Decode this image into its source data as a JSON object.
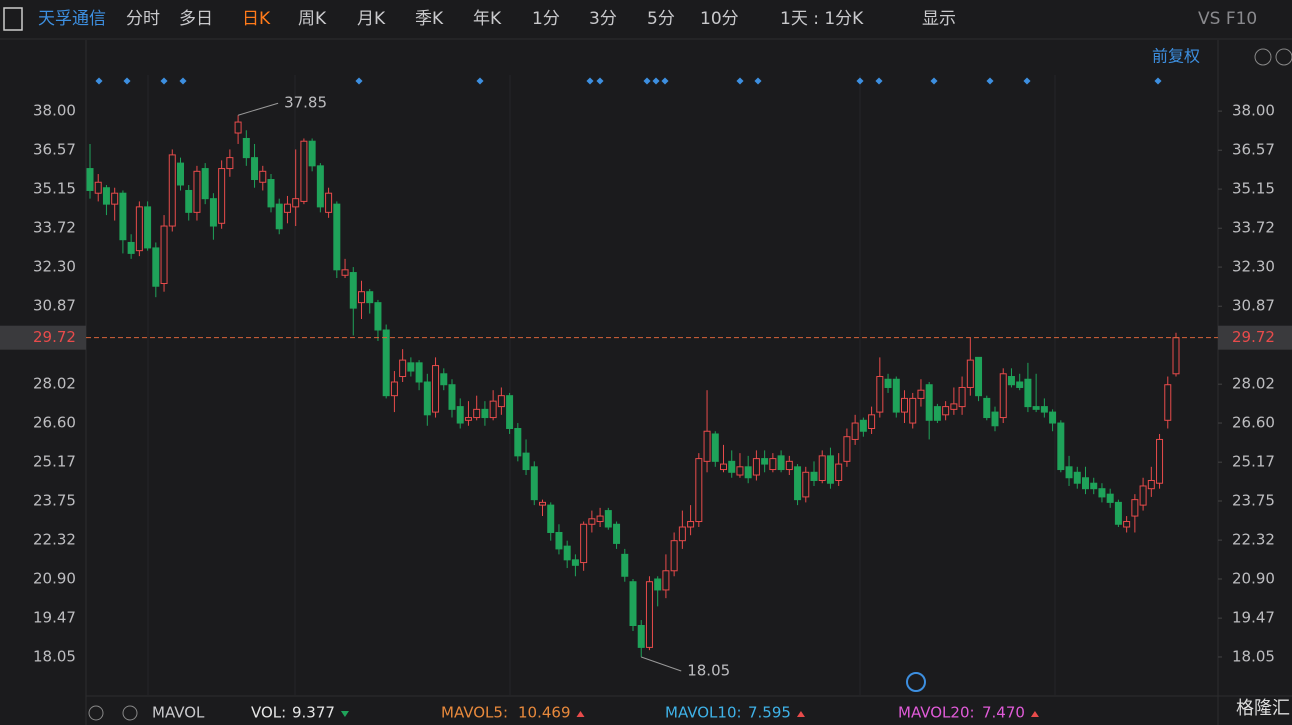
{
  "toolbar": {
    "symbol": "天孚通信",
    "periods": [
      "分时",
      "多日",
      "日K",
      "周K",
      "月K",
      "季K",
      "年K",
      "1分",
      "3分",
      "5分",
      "10分"
    ],
    "interval": "1天 : 1分K",
    "display": "显示",
    "f10": "VS F10"
  },
  "adjust": "前复权",
  "chart_data": {
    "type": "candlestick",
    "up_color": "#e84b4b",
    "down_color": "#1fa35a",
    "candles": [
      [
        35.9,
        36.8,
        34.8,
        35.1
      ],
      [
        35.0,
        35.7,
        34.7,
        35.4
      ],
      [
        35.2,
        35.3,
        34.2,
        34.6
      ],
      [
        34.6,
        35.2,
        34.0,
        35.0
      ],
      [
        35.0,
        35.1,
        32.8,
        33.3
      ],
      [
        33.2,
        33.5,
        32.6,
        32.8
      ],
      [
        32.9,
        34.7,
        32.7,
        34.5
      ],
      [
        34.5,
        34.7,
        32.9,
        33.0
      ],
      [
        33.0,
        33.2,
        31.2,
        31.6
      ],
      [
        31.7,
        34.2,
        31.4,
        33.8
      ],
      [
        33.8,
        36.6,
        33.6,
        36.4
      ],
      [
        36.1,
        36.3,
        35.1,
        35.3
      ],
      [
        35.1,
        35.3,
        34.0,
        34.3
      ],
      [
        34.3,
        36.0,
        34.0,
        35.8
      ],
      [
        35.9,
        36.1,
        34.6,
        34.8
      ],
      [
        34.8,
        35.0,
        33.3,
        33.8
      ],
      [
        33.9,
        36.2,
        33.7,
        35.9
      ],
      [
        35.9,
        36.6,
        35.6,
        36.3
      ],
      [
        37.2,
        37.85,
        36.8,
        37.6
      ],
      [
        37.0,
        37.3,
        36.0,
        36.3
      ],
      [
        36.3,
        36.8,
        35.2,
        35.5
      ],
      [
        35.4,
        36.0,
        35.1,
        35.8
      ],
      [
        35.5,
        35.7,
        34.3,
        34.5
      ],
      [
        34.6,
        34.8,
        33.5,
        33.7
      ],
      [
        34.3,
        34.9,
        33.9,
        34.6
      ],
      [
        34.5,
        36.6,
        33.8,
        34.8
      ],
      [
        34.7,
        37.0,
        34.6,
        36.9
      ],
      [
        36.9,
        37.0,
        35.8,
        36.0
      ],
      [
        36.0,
        36.1,
        34.3,
        34.5
      ],
      [
        34.3,
        35.2,
        34.1,
        35.0
      ],
      [
        34.6,
        34.7,
        31.9,
        32.2
      ],
      [
        32.0,
        32.6,
        31.9,
        32.2
      ],
      [
        32.1,
        32.3,
        29.8,
        30.8
      ],
      [
        31.0,
        31.8,
        30.4,
        31.4
      ],
      [
        31.4,
        31.5,
        30.6,
        31.0
      ],
      [
        31.0,
        31.1,
        29.6,
        30.0
      ],
      [
        30.0,
        30.2,
        27.5,
        27.6
      ],
      [
        27.6,
        28.5,
        27.0,
        28.1
      ],
      [
        28.3,
        29.3,
        28.1,
        28.9
      ],
      [
        28.8,
        29.0,
        28.3,
        28.5
      ],
      [
        28.8,
        28.9,
        27.8,
        28.1
      ],
      [
        28.1,
        28.4,
        26.5,
        26.9
      ],
      [
        27.0,
        29.0,
        26.8,
        28.7
      ],
      [
        28.4,
        28.6,
        27.8,
        28.0
      ],
      [
        28.0,
        28.2,
        26.8,
        27.1
      ],
      [
        27.2,
        27.5,
        26.4,
        26.6
      ],
      [
        26.7,
        27.4,
        26.5,
        26.8
      ],
      [
        26.8,
        27.6,
        26.7,
        27.1
      ],
      [
        27.1,
        27.4,
        26.5,
        26.8
      ],
      [
        26.8,
        27.8,
        26.7,
        27.4
      ],
      [
        27.2,
        27.9,
        26.9,
        27.6
      ],
      [
        27.6,
        27.7,
        26.2,
        26.4
      ],
      [
        26.4,
        26.6,
        25.2,
        25.4
      ],
      [
        25.5,
        26.0,
        24.7,
        24.9
      ],
      [
        25.0,
        25.2,
        23.6,
        23.8
      ],
      [
        23.6,
        23.8,
        23.2,
        23.7
      ],
      [
        23.6,
        23.7,
        22.3,
        22.6
      ],
      [
        22.6,
        22.9,
        21.8,
        22.0
      ],
      [
        22.1,
        22.3,
        21.3,
        21.6
      ],
      [
        21.6,
        21.8,
        21.0,
        21.4
      ],
      [
        21.5,
        23.0,
        21.2,
        22.9
      ],
      [
        22.9,
        23.4,
        22.6,
        23.1
      ],
      [
        23.0,
        23.5,
        22.8,
        23.2
      ],
      [
        23.4,
        23.5,
        22.7,
        22.8
      ],
      [
        22.9,
        23.0,
        22.0,
        22.2
      ],
      [
        21.8,
        22.0,
        20.8,
        21.0
      ],
      [
        20.8,
        20.9,
        19.0,
        19.2
      ],
      [
        19.2,
        19.4,
        18.05,
        18.4
      ],
      [
        18.4,
        21.0,
        18.3,
        20.8
      ],
      [
        20.9,
        21.0,
        19.9,
        20.5
      ],
      [
        20.5,
        21.8,
        20.2,
        21.2
      ],
      [
        21.2,
        22.6,
        21.0,
        22.3
      ],
      [
        22.3,
        23.4,
        22.0,
        22.8
      ],
      [
        22.8,
        23.6,
        22.5,
        23.0
      ],
      [
        23.0,
        25.5,
        22.8,
        25.3
      ],
      [
        25.2,
        27.8,
        24.8,
        26.3
      ],
      [
        26.2,
        26.3,
        25.0,
        25.2
      ],
      [
        24.9,
        25.8,
        24.8,
        25.1
      ],
      [
        25.2,
        25.6,
        24.6,
        24.8
      ],
      [
        24.7,
        25.5,
        24.6,
        25.0
      ],
      [
        25.0,
        25.4,
        24.4,
        24.6
      ],
      [
        24.7,
        25.6,
        24.5,
        25.3
      ],
      [
        25.3,
        25.6,
        24.8,
        25.1
      ],
      [
        24.9,
        25.5,
        24.8,
        25.3
      ],
      [
        25.4,
        25.6,
        24.8,
        24.9
      ],
      [
        24.9,
        25.4,
        24.7,
        25.2
      ],
      [
        25.0,
        25.1,
        23.6,
        23.8
      ],
      [
        23.9,
        25.0,
        23.7,
        24.8
      ],
      [
        24.8,
        25.2,
        24.3,
        24.5
      ],
      [
        24.5,
        25.6,
        24.4,
        25.4
      ],
      [
        25.4,
        25.7,
        24.2,
        24.4
      ],
      [
        24.5,
        25.5,
        24.3,
        25.1
      ],
      [
        25.2,
        26.4,
        25.0,
        26.1
      ],
      [
        26.0,
        26.9,
        25.8,
        26.6
      ],
      [
        26.7,
        26.8,
        26.1,
        26.3
      ],
      [
        26.4,
        27.2,
        26.2,
        26.9
      ],
      [
        27.0,
        29.0,
        26.8,
        28.3
      ],
      [
        28.2,
        28.4,
        27.7,
        27.9
      ],
      [
        28.2,
        28.3,
        26.8,
        27.0
      ],
      [
        27.0,
        27.8,
        26.6,
        27.5
      ],
      [
        26.6,
        27.7,
        26.4,
        27.5
      ],
      [
        27.5,
        28.2,
        27.2,
        27.8
      ],
      [
        28.0,
        28.1,
        26.0,
        26.7
      ],
      [
        27.2,
        27.3,
        26.6,
        26.7
      ],
      [
        26.9,
        27.4,
        26.7,
        27.2
      ],
      [
        27.1,
        27.9,
        26.9,
        27.3
      ],
      [
        27.2,
        28.3,
        26.9,
        27.9
      ],
      [
        27.9,
        29.72,
        27.6,
        28.9
      ],
      [
        29.0,
        29.0,
        27.4,
        27.6
      ],
      [
        27.5,
        27.6,
        26.7,
        26.8
      ],
      [
        27.0,
        27.2,
        26.3,
        26.5
      ],
      [
        26.8,
        28.6,
        26.6,
        28.4
      ],
      [
        28.3,
        28.6,
        27.9,
        28.0
      ],
      [
        28.1,
        28.4,
        27.8,
        27.9
      ],
      [
        28.2,
        28.8,
        27.0,
        27.2
      ],
      [
        27.2,
        28.4,
        27.0,
        27.1
      ],
      [
        27.2,
        27.5,
        26.8,
        27.0
      ],
      [
        27.0,
        27.1,
        26.3,
        26.6
      ],
      [
        26.6,
        26.7,
        24.8,
        24.9
      ],
      [
        25.0,
        25.4,
        24.3,
        24.6
      ],
      [
        24.8,
        25.0,
        24.2,
        24.4
      ],
      [
        24.6,
        25.0,
        24.0,
        24.2
      ],
      [
        24.4,
        24.6,
        24.0,
        24.2
      ],
      [
        24.2,
        24.4,
        23.7,
        23.9
      ],
      [
        24.0,
        24.2,
        23.5,
        23.7
      ],
      [
        23.7,
        23.8,
        22.8,
        22.9
      ],
      [
        22.8,
        23.2,
        22.6,
        23.0
      ],
      [
        23.2,
        24.0,
        22.6,
        23.8
      ],
      [
        23.6,
        24.6,
        23.4,
        24.3
      ],
      [
        24.2,
        25.0,
        23.9,
        24.5
      ],
      [
        24.4,
        26.2,
        24.2,
        26.0
      ],
      [
        26.7,
        28.3,
        26.4,
        28.0
      ],
      [
        28.4,
        29.9,
        28.3,
        29.72
      ]
    ],
    "ylim": [
      16.66,
      39.32
    ],
    "yticks": [
      {
        "value": 38,
        "label": "38.00"
      },
      36.57,
      35.15,
      33.72,
      {
        "value": 32.3,
        "label": "32.30"
      },
      30.87,
      28.02,
      {
        "value": 26.6,
        "label": "26.60"
      },
      25.17,
      23.75,
      22.32,
      {
        "value": 20.9,
        "label": "20.90"
      },
      19.47,
      18.05
    ],
    "high": 37.85,
    "low": 18.05,
    "last": 29.72
  },
  "footer": {
    "indicator": "MAVOL",
    "items": [
      {
        "name": "VOL:",
        "value": "9.377"
      },
      {
        "name": "MAVOL5:",
        "value": "10.469"
      },
      {
        "name": "MAVOL10:",
        "value": "7.595"
      },
      {
        "name": "MAVOL20:",
        "value": "7.470"
      }
    ]
  },
  "watermark": "格隆汇"
}
